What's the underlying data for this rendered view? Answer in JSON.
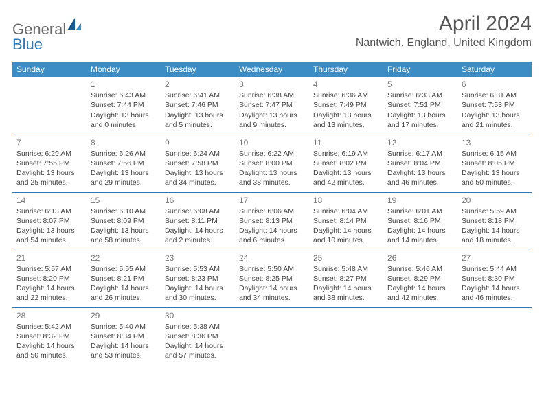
{
  "logo": {
    "part1": "General",
    "part2": "Blue"
  },
  "title": "April 2024",
  "location": "Nantwich, England, United Kingdom",
  "colors": {
    "header_bg": "#3c8dc6",
    "accent": "#2f78b7",
    "text": "#444444",
    "muted": "#777777"
  },
  "weekdays": [
    "Sunday",
    "Monday",
    "Tuesday",
    "Wednesday",
    "Thursday",
    "Friday",
    "Saturday"
  ],
  "grid": [
    [
      null,
      {
        "n": "1",
        "sr": "6:43 AM",
        "ss": "7:44 PM",
        "dl": "13 hours and 0 minutes."
      },
      {
        "n": "2",
        "sr": "6:41 AM",
        "ss": "7:46 PM",
        "dl": "13 hours and 5 minutes."
      },
      {
        "n": "3",
        "sr": "6:38 AM",
        "ss": "7:47 PM",
        "dl": "13 hours and 9 minutes."
      },
      {
        "n": "4",
        "sr": "6:36 AM",
        "ss": "7:49 PM",
        "dl": "13 hours and 13 minutes."
      },
      {
        "n": "5",
        "sr": "6:33 AM",
        "ss": "7:51 PM",
        "dl": "13 hours and 17 minutes."
      },
      {
        "n": "6",
        "sr": "6:31 AM",
        "ss": "7:53 PM",
        "dl": "13 hours and 21 minutes."
      }
    ],
    [
      {
        "n": "7",
        "sr": "6:29 AM",
        "ss": "7:55 PM",
        "dl": "13 hours and 25 minutes."
      },
      {
        "n": "8",
        "sr": "6:26 AM",
        "ss": "7:56 PM",
        "dl": "13 hours and 29 minutes."
      },
      {
        "n": "9",
        "sr": "6:24 AM",
        "ss": "7:58 PM",
        "dl": "13 hours and 34 minutes."
      },
      {
        "n": "10",
        "sr": "6:22 AM",
        "ss": "8:00 PM",
        "dl": "13 hours and 38 minutes."
      },
      {
        "n": "11",
        "sr": "6:19 AM",
        "ss": "8:02 PM",
        "dl": "13 hours and 42 minutes."
      },
      {
        "n": "12",
        "sr": "6:17 AM",
        "ss": "8:04 PM",
        "dl": "13 hours and 46 minutes."
      },
      {
        "n": "13",
        "sr": "6:15 AM",
        "ss": "8:05 PM",
        "dl": "13 hours and 50 minutes."
      }
    ],
    [
      {
        "n": "14",
        "sr": "6:13 AM",
        "ss": "8:07 PM",
        "dl": "13 hours and 54 minutes."
      },
      {
        "n": "15",
        "sr": "6:10 AM",
        "ss": "8:09 PM",
        "dl": "13 hours and 58 minutes."
      },
      {
        "n": "16",
        "sr": "6:08 AM",
        "ss": "8:11 PM",
        "dl": "14 hours and 2 minutes."
      },
      {
        "n": "17",
        "sr": "6:06 AM",
        "ss": "8:13 PM",
        "dl": "14 hours and 6 minutes."
      },
      {
        "n": "18",
        "sr": "6:04 AM",
        "ss": "8:14 PM",
        "dl": "14 hours and 10 minutes."
      },
      {
        "n": "19",
        "sr": "6:01 AM",
        "ss": "8:16 PM",
        "dl": "14 hours and 14 minutes."
      },
      {
        "n": "20",
        "sr": "5:59 AM",
        "ss": "8:18 PM",
        "dl": "14 hours and 18 minutes."
      }
    ],
    [
      {
        "n": "21",
        "sr": "5:57 AM",
        "ss": "8:20 PM",
        "dl": "14 hours and 22 minutes."
      },
      {
        "n": "22",
        "sr": "5:55 AM",
        "ss": "8:21 PM",
        "dl": "14 hours and 26 minutes."
      },
      {
        "n": "23",
        "sr": "5:53 AM",
        "ss": "8:23 PM",
        "dl": "14 hours and 30 minutes."
      },
      {
        "n": "24",
        "sr": "5:50 AM",
        "ss": "8:25 PM",
        "dl": "14 hours and 34 minutes."
      },
      {
        "n": "25",
        "sr": "5:48 AM",
        "ss": "8:27 PM",
        "dl": "14 hours and 38 minutes."
      },
      {
        "n": "26",
        "sr": "5:46 AM",
        "ss": "8:29 PM",
        "dl": "14 hours and 42 minutes."
      },
      {
        "n": "27",
        "sr": "5:44 AM",
        "ss": "8:30 PM",
        "dl": "14 hours and 46 minutes."
      }
    ],
    [
      {
        "n": "28",
        "sr": "5:42 AM",
        "ss": "8:32 PM",
        "dl": "14 hours and 50 minutes."
      },
      {
        "n": "29",
        "sr": "5:40 AM",
        "ss": "8:34 PM",
        "dl": "14 hours and 53 minutes."
      },
      {
        "n": "30",
        "sr": "5:38 AM",
        "ss": "8:36 PM",
        "dl": "14 hours and 57 minutes."
      },
      null,
      null,
      null,
      null
    ]
  ]
}
